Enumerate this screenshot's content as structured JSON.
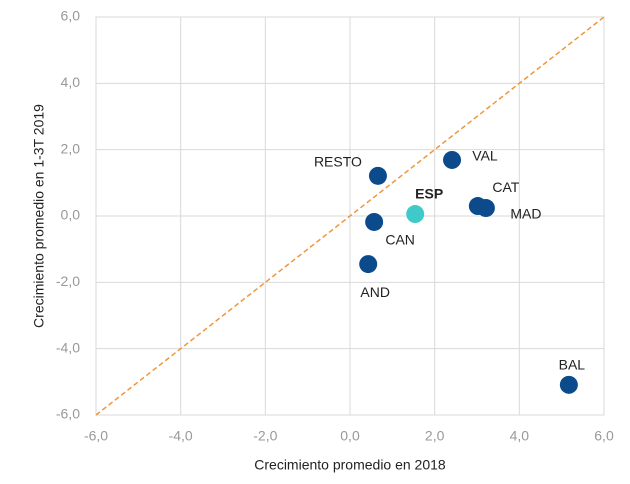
{
  "chart_data": {
    "type": "scatter",
    "x_label": "Crecimiento promedio  en 2018",
    "y_label": "Crecimiento promedio  en 1-3T 2019",
    "point_labels": [
      "RESTO",
      "VAL",
      "ESP",
      "CAT",
      "MAD",
      "CAN",
      "AND",
      "BAL"
    ],
    "x": [
      0.66,
      2.41,
      1.54,
      3.02,
      3.21,
      0.57,
      0.43,
      5.17
    ],
    "values": [
      1.21,
      1.69,
      0.06,
      0.3,
      0.24,
      -0.18,
      -1.45,
      -5.09
    ],
    "colors": [
      "#0b4a8b",
      "#0b4a8b",
      "#3fcaca",
      "#0b4a8b",
      "#0b4a8b",
      "#0b4a8b",
      "#0b4a8b",
      "#0b4a8b"
    ],
    "bold_labels": [
      false,
      false,
      true,
      false,
      false,
      false,
      false,
      false
    ],
    "xlim": [
      -6,
      6
    ],
    "ylim": [
      -6,
      6
    ],
    "xticks": [
      {
        "value": -6,
        "label": "-6,0"
      },
      {
        "value": -4,
        "label": "-4,0"
      },
      {
        "value": -2,
        "label": "-2,0"
      },
      {
        "value": 0,
        "label": "0,0"
      },
      {
        "value": 2,
        "label": "2,0"
      },
      {
        "value": 4,
        "label": "4,0"
      },
      {
        "value": 6,
        "label": "6,0"
      }
    ],
    "yticks": [
      {
        "value": -6,
        "label": "-6,0"
      },
      {
        "value": -4,
        "label": "-4,0"
      },
      {
        "value": -2,
        "label": "-2,0"
      },
      {
        "value": 0,
        "label": "0,0"
      },
      {
        "value": 2,
        "label": "2,0"
      },
      {
        "value": 4,
        "label": "4,0"
      },
      {
        "value": 6,
        "label": "6,0"
      }
    ],
    "grid": true,
    "diagonal": true,
    "diagonal_color": "#f0963c"
  }
}
